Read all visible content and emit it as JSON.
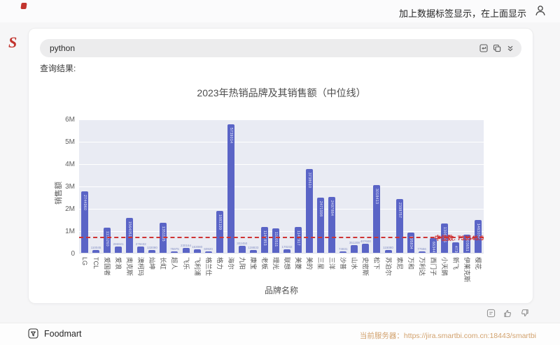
{
  "topbar": {
    "message": "加上数据标签显示，在上面显示"
  },
  "query": {
    "input_value": "python",
    "result_label": "查询结果:"
  },
  "brand": {
    "logo_text": "S"
  },
  "chart_data": {
    "type": "bar",
    "title": "2023年热销品牌及其销售额（中位线）",
    "xlabel": "品牌名称",
    "ylabel": "销售额",
    "ylim": [
      0,
      6000000
    ],
    "ytick_labels": [
      "0",
      "1M",
      "2M",
      "3M",
      "4M",
      "5M",
      "6M"
    ],
    "grid": true,
    "legend_position": "none",
    "bar_color": "#5a64c6",
    "categories": [
      "LG",
      "TCL",
      "爱国者",
      "爱浪",
      "奥克斯",
      "澳柯玛",
      "灿坤",
      "长虹",
      "超人",
      "飞乐",
      "飞利浦",
      "格兰仕",
      "格力",
      "海尔",
      "九阳",
      "康宝",
      "老板",
      "理光",
      "联想",
      "美菱",
      "美的",
      "三星",
      "三洋",
      "沙普",
      "山水",
      "史密斯",
      "松下",
      "苏泊尔",
      "索尼",
      "万和",
      "万利达",
      "西门子",
      "小天鹅",
      "新飞",
      "伊莱克斯",
      "樱花"
    ],
    "values": [
      2744960,
      110045,
      1136260,
      286921,
      1564051,
      278432,
      132080,
      1351185,
      75975,
      230164,
      163080,
      60920,
      1883199,
      5739014,
      302450,
      128833,
      1141853,
      1106511,
      170232,
      1147917,
      3738610,
      2471998,
      2497884,
      74831,
      351208,
      407600,
      3018413,
      115080,
      2398757,
      895834,
      77556,
      663440,
      1306046,
      473005,
      803651,
      1463037
    ],
    "median_line": {
      "value": 733545.5,
      "label": "中位数: 733545.5",
      "color": "#cf3333",
      "style": "dashed"
    }
  },
  "footer": {
    "workspace": "Foodmart",
    "server": "当前服务器：https://jira.smartbi.com.cn:18443/smartbi"
  }
}
